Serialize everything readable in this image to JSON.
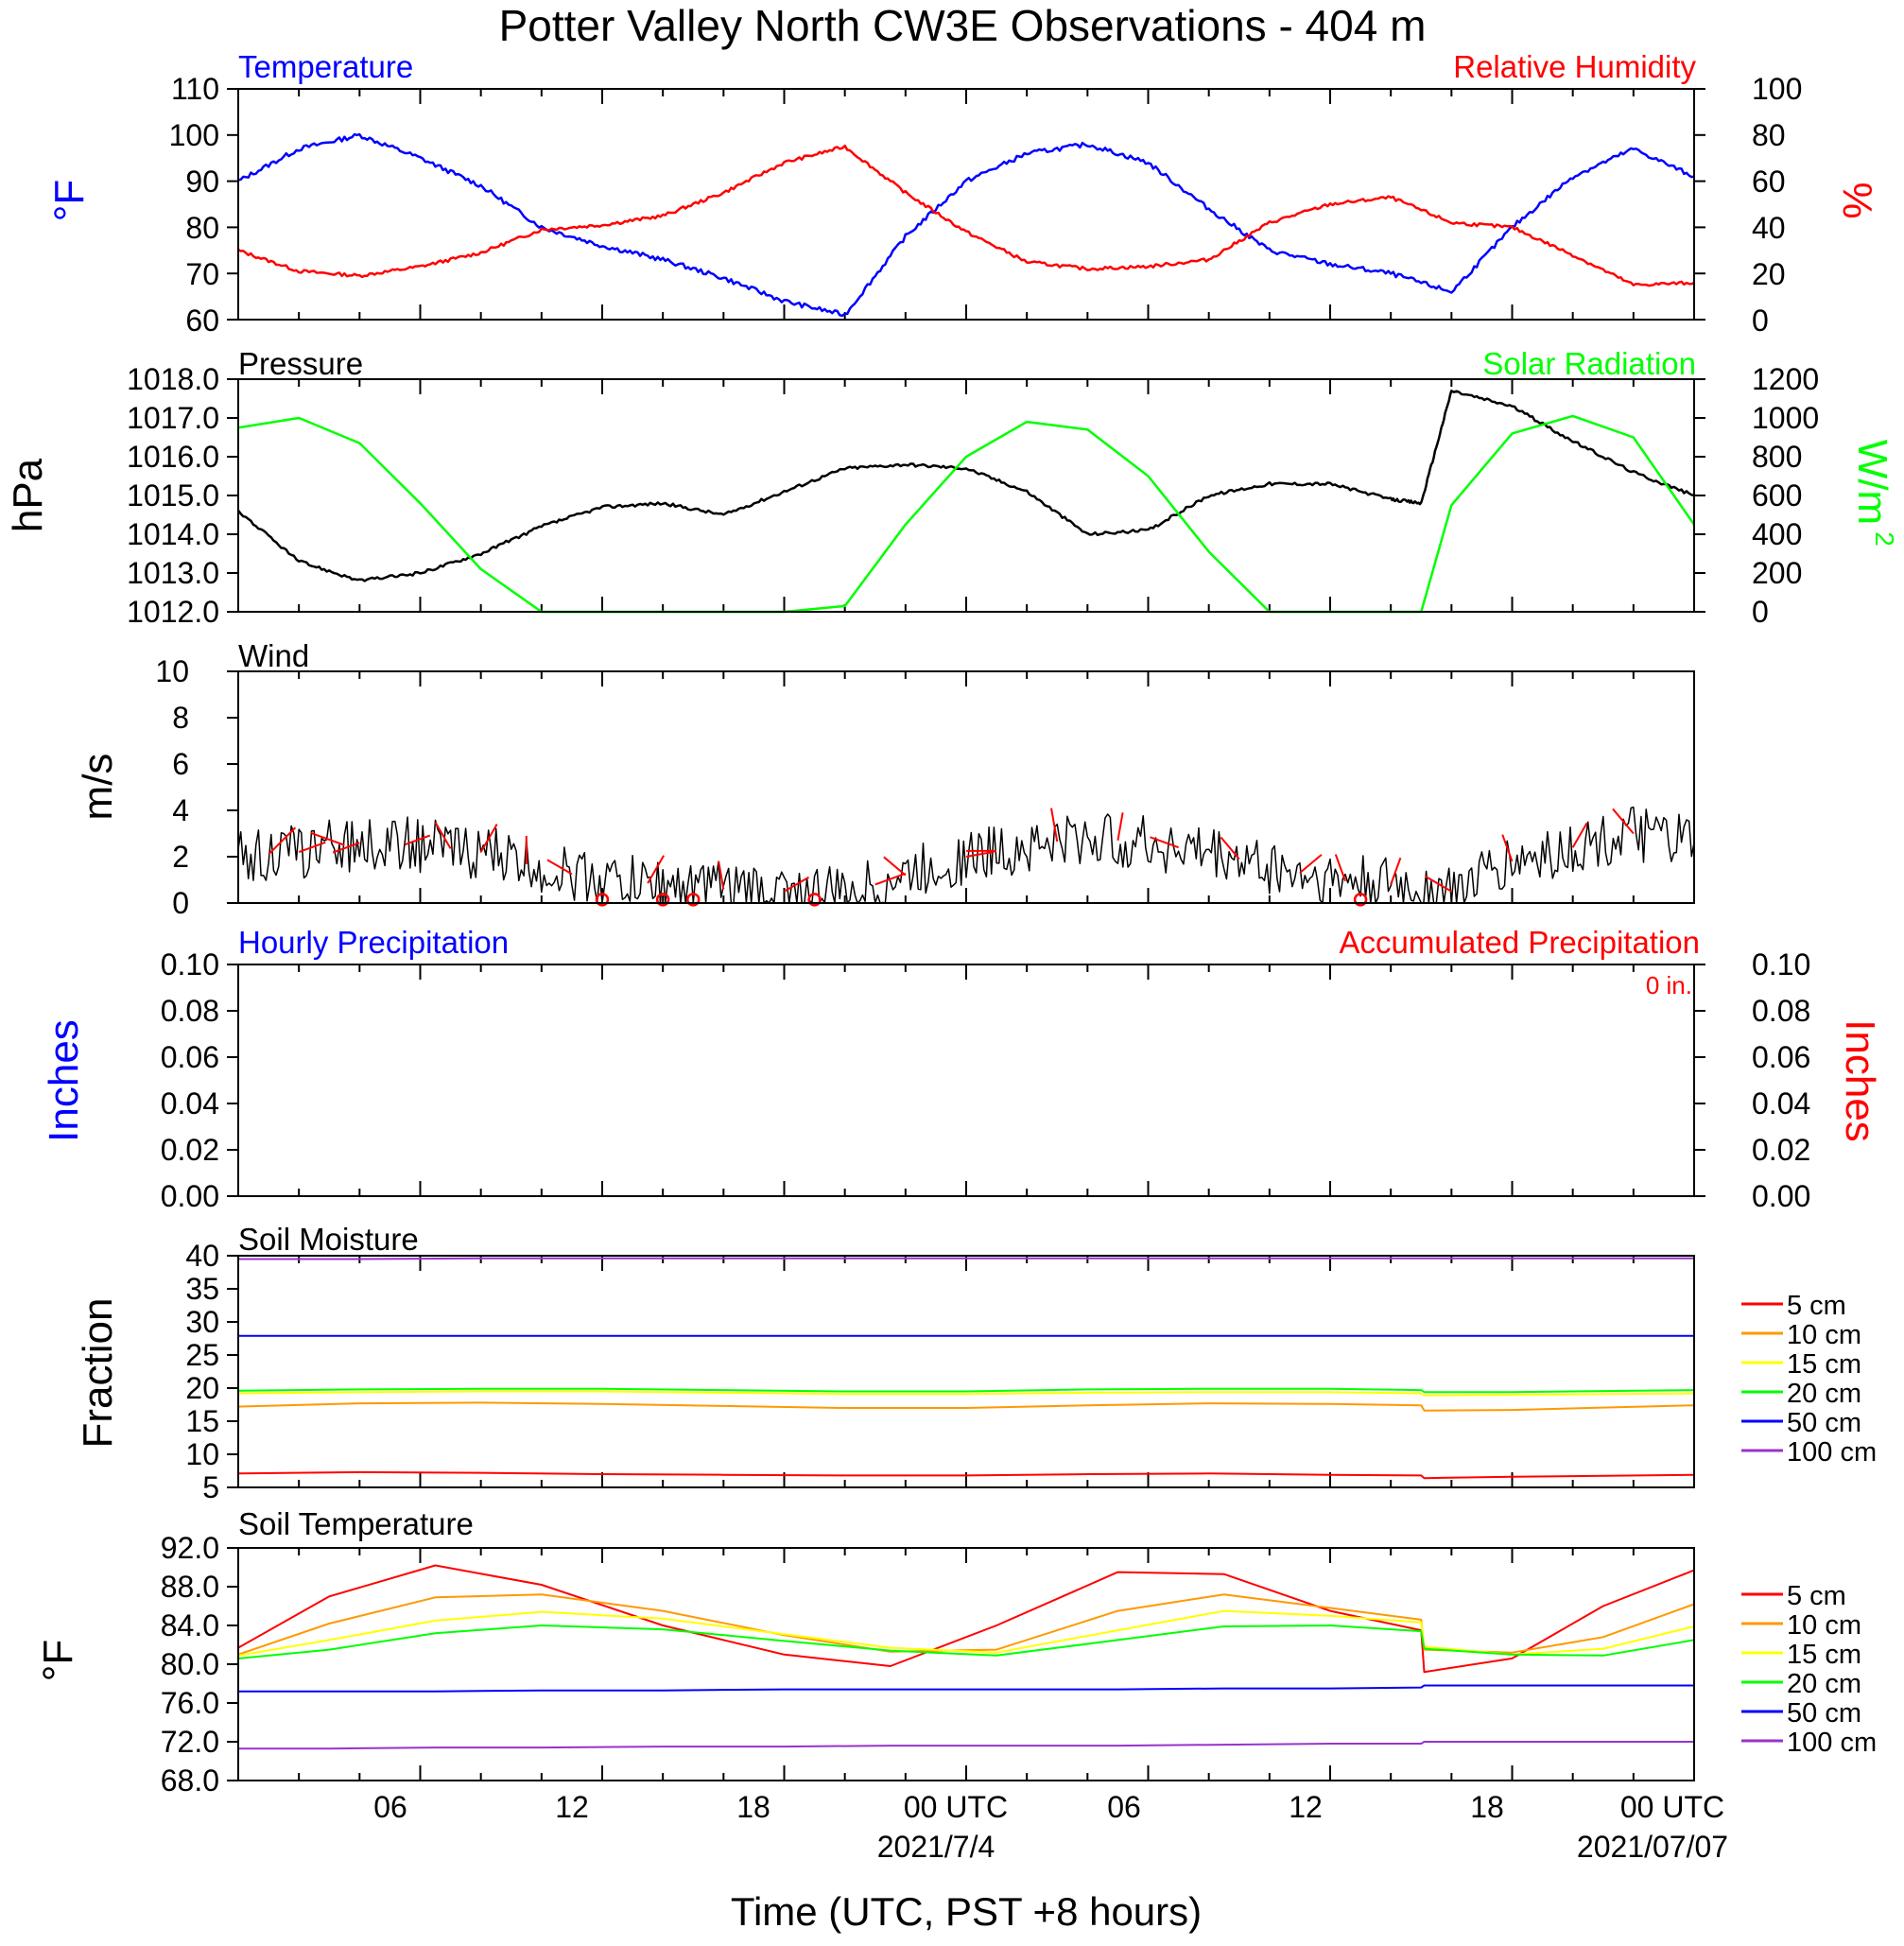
{
  "title": "Potter Valley North CW3E Observations - 404 m",
  "xlabel": "Time (UTC, PST +8 hours)",
  "xaxis": {
    "tick_labels": [
      "06",
      "12",
      "18",
      "00 UTC",
      "06",
      "12",
      "18",
      "00 UTC"
    ],
    "date_labels": [
      "2021/7/4",
      "2021/07/07"
    ]
  },
  "colors": {
    "blue": "#0000ff",
    "red": "#ff0000",
    "green": "#00ff00",
    "black": "#000000",
    "orange": "#ff9900",
    "yellow": "#ffff00",
    "purple": "#9933cc"
  },
  "panels": {
    "temp_rh": {
      "left_title": "Temperature",
      "right_title": "Relative Humidity",
      "ylabel_left": "°F",
      "ylabel_right": "%",
      "left_ticks": [
        "110",
        "100",
        "90",
        "80",
        "70",
        "60"
      ],
      "right_ticks": [
        "100",
        "80",
        "60",
        "40",
        "20",
        "0"
      ]
    },
    "pressure_solar": {
      "left_title": "Pressure",
      "right_title": "Solar Radiation",
      "ylabel_left": "hPa",
      "ylabel_right": "W/m",
      "ylabel_right_sup": "2",
      "left_ticks": [
        "1018.0",
        "1017.0",
        "1016.0",
        "1015.0",
        "1014.0",
        "1013.0",
        "1012.0"
      ],
      "right_ticks": [
        "1200",
        "1000",
        "800",
        "600",
        "400",
        "200",
        "0"
      ]
    },
    "wind": {
      "left_title": "Wind",
      "ylabel_left": "m/s",
      "left_ticks": [
        "10",
        "8",
        "6",
        "4",
        "2",
        "0"
      ]
    },
    "precip": {
      "left_title": "Hourly Precipitation",
      "right_title": "Accumulated Precipitation",
      "total_label": "0 in.",
      "ylabel_left": "Inches",
      "ylabel_right": "Inches",
      "left_ticks": [
        "0.10",
        "0.08",
        "0.06",
        "0.04",
        "0.02",
        "0.00"
      ],
      "right_ticks": [
        "0.10",
        "0.08",
        "0.06",
        "0.04",
        "0.02",
        "0.00"
      ]
    },
    "soil_moisture": {
      "left_title": "Soil Moisture",
      "ylabel_left": "Fraction",
      "left_ticks": [
        "40",
        "35",
        "30",
        "25",
        "20",
        "15",
        "10",
        "5"
      ],
      "legend": [
        "5 cm",
        "10 cm",
        "15 cm",
        "20 cm",
        "50 cm",
        "100 cm"
      ]
    },
    "soil_temp": {
      "left_title": "Soil Temperature",
      "ylabel_left": "°F",
      "left_ticks": [
        "92.0",
        "88.0",
        "84.0",
        "80.0",
        "76.0",
        "72.0",
        "68.0"
      ],
      "legend": [
        "5 cm",
        "10 cm",
        "15 cm",
        "20 cm",
        "50 cm",
        "100 cm"
      ]
    }
  },
  "chart_data": [
    {
      "type": "line",
      "title": "Temperature / Relative Humidity",
      "x_hours": [
        0,
        2,
        4,
        6,
        8,
        10,
        12,
        14,
        16,
        18,
        20,
        22,
        24,
        26,
        28,
        30,
        32,
        34,
        36,
        38,
        40,
        42,
        44,
        46,
        48
      ],
      "series": [
        {
          "name": "Temperature",
          "axis": "left",
          "unit": "°F",
          "values": [
            90,
            97,
            100,
            95,
            89,
            80,
            76,
            73,
            69,
            64,
            61,
            78,
            90,
            96,
            98,
            94,
            84,
            75,
            72,
            70,
            66,
            80,
            91,
            97,
            91
          ]
        },
        {
          "name": "Relative Humidity",
          "axis": "right",
          "unit": "%",
          "values": [
            30,
            21,
            19,
            23,
            29,
            39,
            41,
            45,
            55,
            68,
            75,
            55,
            38,
            25,
            22,
            23,
            26,
            42,
            50,
            53,
            42,
            40,
            28,
            15,
            16
          ]
        }
      ],
      "ylim_left": [
        60,
        110
      ],
      "ylim_right": [
        0,
        100
      ]
    },
    {
      "type": "line",
      "title": "Pressure / Solar Radiation",
      "x_hours": [
        0,
        2,
        4,
        6,
        8,
        10,
        12,
        14,
        16,
        18,
        20,
        22,
        24,
        26,
        28,
        30,
        32,
        34,
        36,
        38,
        39,
        40,
        42,
        44,
        46,
        48
      ],
      "series": [
        {
          "name": "Pressure",
          "axis": "left",
          "unit": "hPa",
          "values": [
            1014.6,
            1013.3,
            1012.8,
            1013.0,
            1013.5,
            1014.2,
            1014.7,
            1014.8,
            1014.5,
            1015.1,
            1015.7,
            1015.8,
            1015.7,
            1015.1,
            1014.0,
            1014.1,
            1015.0,
            1015.3,
            1015.3,
            1014.9,
            1014.8,
            1017.7,
            1017.3,
            1016.4,
            1015.6,
            1015.0
          ]
        },
        {
          "name": "Solar Radiation",
          "axis": "right",
          "unit": "W/m2",
          "values": [
            950,
            1000,
            870,
            560,
            220,
            0,
            0,
            0,
            0,
            0,
            30,
            450,
            800,
            980,
            940,
            700,
            310,
            0,
            0,
            0,
            0,
            550,
            920,
            1010,
            900,
            450
          ]
        }
      ],
      "ylim_left": [
        1012,
        1018
      ],
      "ylim_right": [
        0,
        1200
      ]
    },
    {
      "type": "line",
      "title": "Wind",
      "x_hours": [
        0,
        2,
        4,
        6,
        8,
        10,
        12,
        14,
        16,
        18,
        20,
        22,
        24,
        26,
        28,
        30,
        32,
        34,
        36,
        38,
        40,
        42,
        44,
        46,
        48
      ],
      "series": [
        {
          "name": "Wind speed",
          "unit": "m/s",
          "values": [
            2.0,
            2.2,
            2.6,
            2.5,
            2.2,
            1.5,
            1.0,
            0.8,
            0.6,
            0.5,
            0.4,
            1.2,
            2.0,
            2.5,
            2.8,
            2.6,
            2.2,
            1.6,
            1.0,
            0.8,
            0.5,
            1.8,
            2.4,
            3.0,
            2.6
          ]
        }
      ],
      "ylim": [
        0,
        10
      ]
    },
    {
      "type": "line",
      "title": "Hourly / Accumulated Precipitation",
      "x_hours": [
        0,
        48
      ],
      "series": [
        {
          "name": "Hourly Precipitation",
          "unit": "in",
          "values": [
            0,
            0
          ]
        },
        {
          "name": "Accumulated Precipitation",
          "unit": "in",
          "values": [
            0,
            0
          ]
        }
      ],
      "ylim": [
        0,
        0.1
      ]
    },
    {
      "type": "line",
      "title": "Soil Moisture",
      "x_hours": [
        0,
        4,
        8,
        12,
        16,
        20,
        24,
        28,
        32,
        36,
        39,
        39.1,
        42,
        48
      ],
      "series": [
        {
          "name": "5 cm",
          "color": "red",
          "values": [
            7.1,
            7.3,
            7.2,
            7.0,
            6.9,
            6.8,
            6.8,
            7.0,
            7.1,
            6.9,
            6.8,
            6.4,
            6.6,
            6.9
          ]
        },
        {
          "name": "10 cm",
          "color": "orange",
          "values": [
            17.2,
            17.7,
            17.8,
            17.6,
            17.3,
            17.0,
            17.0,
            17.4,
            17.7,
            17.6,
            17.4,
            16.6,
            16.7,
            17.4
          ]
        },
        {
          "name": "15 cm",
          "color": "yellow",
          "values": [
            19.2,
            19.4,
            19.5,
            19.5,
            19.3,
            19.1,
            19.1,
            19.3,
            19.4,
            19.4,
            19.2,
            18.9,
            19.0,
            19.2
          ]
        },
        {
          "name": "20 cm",
          "color": "green",
          "values": [
            19.6,
            19.8,
            19.9,
            19.9,
            19.7,
            19.5,
            19.5,
            19.8,
            19.9,
            19.9,
            19.7,
            19.4,
            19.4,
            19.7
          ]
        },
        {
          "name": "50 cm",
          "color": "blue",
          "values": [
            27.9,
            27.9,
            27.9,
            27.9,
            27.9,
            27.9,
            27.9,
            27.9,
            27.9,
            27.9,
            27.9,
            27.9,
            27.9,
            27.9
          ]
        },
        {
          "name": "100 cm",
          "color": "purple",
          "values": [
            39.5,
            39.5,
            39.6,
            39.6,
            39.6,
            39.6,
            39.6,
            39.6,
            39.6,
            39.6,
            39.6,
            39.6,
            39.6,
            39.6
          ]
        }
      ],
      "ylim": [
        5,
        40
      ]
    },
    {
      "type": "line",
      "title": "Soil Temperature",
      "x_hours": [
        0,
        3,
        6.5,
        10,
        14,
        18,
        21.5,
        25,
        29,
        32.5,
        36,
        39,
        39.1,
        42,
        45,
        48
      ],
      "series": [
        {
          "name": "5 cm",
          "color": "red",
          "values": [
            81.7,
            87.0,
            90.2,
            88.2,
            84.0,
            81.0,
            79.8,
            84.0,
            89.5,
            89.3,
            85.5,
            83.5,
            79.2,
            80.6,
            86.0,
            89.7
          ]
        },
        {
          "name": "10 cm",
          "color": "orange",
          "values": [
            81.0,
            84.2,
            86.9,
            87.2,
            85.5,
            83.0,
            81.3,
            81.5,
            85.5,
            87.2,
            85.8,
            84.6,
            81.5,
            81.2,
            82.8,
            86.2
          ]
        },
        {
          "name": "15 cm",
          "color": "yellow",
          "values": [
            80.9,
            82.5,
            84.5,
            85.4,
            84.7,
            83.1,
            81.7,
            81.2,
            83.5,
            85.5,
            85.0,
            84.3,
            81.8,
            81.0,
            81.6,
            83.9
          ]
        },
        {
          "name": "20 cm",
          "color": "green",
          "values": [
            80.6,
            81.5,
            83.2,
            84.0,
            83.6,
            82.4,
            81.4,
            80.9,
            82.5,
            83.9,
            84.0,
            83.4,
            81.6,
            81.0,
            80.9,
            82.5
          ]
        },
        {
          "name": "50 cm",
          "color": "blue",
          "values": [
            77.2,
            77.2,
            77.2,
            77.3,
            77.3,
            77.4,
            77.4,
            77.4,
            77.4,
            77.5,
            77.5,
            77.6,
            77.8,
            77.8,
            77.8,
            77.8
          ]
        },
        {
          "name": "100 cm",
          "color": "purple",
          "values": [
            71.3,
            71.3,
            71.4,
            71.4,
            71.5,
            71.5,
            71.6,
            71.6,
            71.6,
            71.7,
            71.8,
            71.8,
            72.0,
            72.0,
            72.0,
            72.0
          ]
        }
      ],
      "ylim": [
        68,
        92
      ]
    }
  ]
}
